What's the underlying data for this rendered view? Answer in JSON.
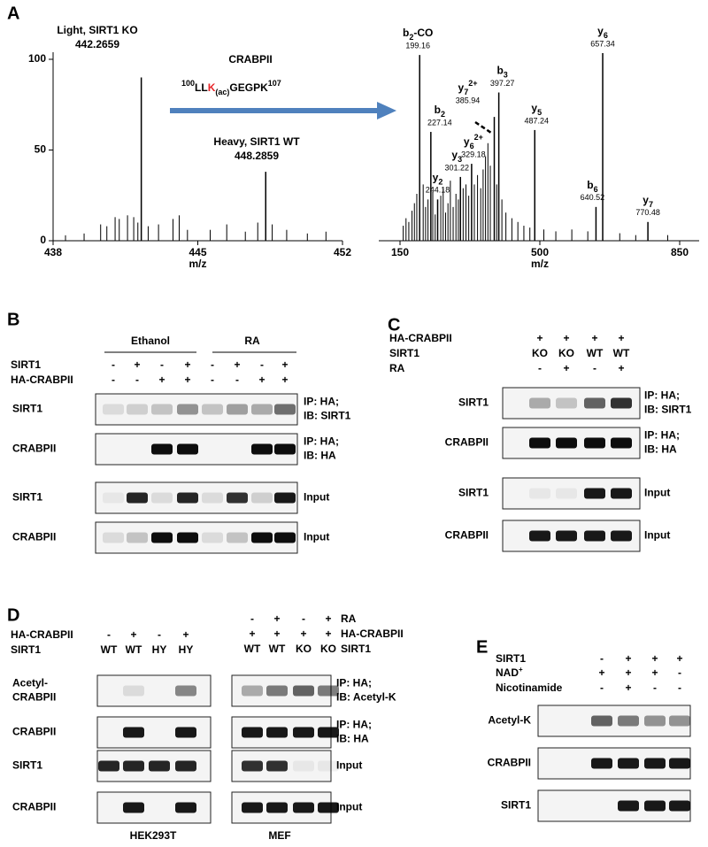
{
  "chart_data": [
    {
      "type": "spectrum",
      "title": "CRABPII",
      "xlabel": "m/z",
      "xlim": [
        438,
        452
      ],
      "xticks": [
        438,
        445,
        452
      ],
      "ylim": [
        0,
        100
      ],
      "yticks": [
        0,
        50,
        100
      ],
      "color": "#000000",
      "sequence": {
        "start": 100,
        "pre": "LL",
        "site": "K",
        "mod": "(ac)",
        "post": "GEGPK",
        "end": 107,
        "site_color": "#e8262a"
      },
      "x": [
        438.6,
        439.5,
        440.3,
        440.6,
        441.0,
        441.2,
        441.6,
        441.9,
        442.1,
        442.6,
        443.1,
        443.8,
        444.1,
        444.5,
        445.6,
        446.4,
        447.3,
        447.9,
        448.6,
        449.3,
        450.3,
        451.2
      ],
      "values": [
        3,
        4,
        9,
        8,
        13,
        12,
        14,
        13,
        10,
        8,
        9,
        12,
        14,
        6,
        6,
        9,
        5,
        10,
        9,
        6,
        4,
        5
      ],
      "labeled_peaks": [
        {
          "x": 442.2659,
          "value": 90,
          "name": "Light, SIRT1 KO",
          "name_color": "#e8262a"
        },
        {
          "x": 448.2859,
          "value": 38,
          "name": "Heavy, SIRT1 WT",
          "name_color": "#e8262a"
        }
      ]
    },
    {
      "type": "spectrum",
      "xlabel": "m/z",
      "xlim": [
        150,
        850
      ],
      "xticks": [
        150,
        500,
        850
      ],
      "ylim": [
        0,
        100
      ],
      "color": "#000000",
      "x": [
        158,
        165,
        172,
        180,
        186,
        192,
        208,
        214,
        220,
        232,
        238,
        252,
        258,
        264,
        270,
        276,
        283,
        290,
        296,
        308,
        315,
        322,
        336,
        344,
        352,
        358,
        364,
        370,
        376,
        392,
        405,
        415,
        430,
        445,
        460,
        475,
        510,
        540,
        580,
        620,
        700,
        740,
        820
      ],
      "values": [
        8,
        12,
        10,
        16,
        20,
        25,
        30,
        18,
        22,
        26,
        14,
        24,
        28,
        15,
        20,
        32,
        18,
        25,
        22,
        28,
        30,
        24,
        30,
        35,
        28,
        38,
        45,
        52,
        40,
        30,
        22,
        15,
        12,
        10,
        8,
        7,
        6,
        5,
        6,
        5,
        4,
        3,
        3
      ],
      "labeled_peaks": [
        {
          "x": 199.16,
          "value": 99,
          "ion": "b",
          "sub": "2",
          "suffix": "-CO"
        },
        {
          "x": 227.14,
          "value": 58,
          "ion": "b",
          "sub": "2"
        },
        {
          "x": 244.18,
          "value": 22,
          "ion": "y",
          "sub": "2"
        },
        {
          "x": 301.22,
          "value": 34,
          "ion": "y",
          "sub": "3"
        },
        {
          "x": 329.18,
          "value": 41,
          "ion": "y",
          "sub": "6",
          "sup": "2+"
        },
        {
          "x": 385.94,
          "value": 66,
          "ion": "y",
          "sub": "7",
          "sup": "2+"
        },
        {
          "x": 397.27,
          "value": 79,
          "ion": "b",
          "sub": "3"
        },
        {
          "x": 487.24,
          "value": 59,
          "ion": "y",
          "sub": "5"
        },
        {
          "x": 657.34,
          "value": 100,
          "ion": "y",
          "sub": "6"
        },
        {
          "x": 640.52,
          "value": 18,
          "ion": "b",
          "sub": "6"
        },
        {
          "x": 770.48,
          "value": 10,
          "ion": "y",
          "sub": "7"
        }
      ]
    }
  ],
  "panel_a": {
    "label": "A"
  },
  "panel_b": {
    "label": "B",
    "groups": [
      "Ethanol",
      "RA"
    ],
    "conditions": [
      {
        "name": "SIRT1",
        "signs": [
          "-",
          "+",
          "-",
          "+",
          "-",
          "+",
          "-",
          "+"
        ]
      },
      {
        "name": "HA-CRABPII",
        "signs": [
          "-",
          "-",
          "+",
          "+",
          "-",
          "-",
          "+",
          "+"
        ]
      }
    ],
    "blots": [
      {
        "protein": [
          "SIRT1"
        ],
        "note": [
          "IP: HA;",
          "IB: SIRT1"
        ]
      },
      {
        "protein": [
          "CRABPII"
        ],
        "note": [
          "IP: HA;",
          "IB: HA"
        ]
      },
      {
        "protein": [
          "SIRT1"
        ],
        "note": [
          "Input"
        ]
      },
      {
        "protein": [
          "CRABPII"
        ],
        "note": [
          "Input"
        ]
      }
    ]
  },
  "panel_c": {
    "label": "C",
    "conditions": [
      {
        "name": "HA-CRABPII",
        "signs": [
          "+",
          "+",
          "+",
          "+"
        ]
      },
      {
        "name": "SIRT1",
        "signs": [
          "KO",
          "KO",
          "WT",
          "WT"
        ]
      },
      {
        "name": "RA",
        "signs": [
          "-",
          "+",
          "-",
          "+"
        ]
      }
    ],
    "blots": [
      {
        "protein": [
          "SIRT1"
        ],
        "note": [
          "IP: HA;",
          "IB: SIRT1"
        ]
      },
      {
        "protein": [
          "CRABPII"
        ],
        "note": [
          "IP: HA;",
          "IB: HA"
        ]
      },
      {
        "protein": [
          "SIRT1"
        ],
        "note": [
          "Input"
        ]
      },
      {
        "protein": [
          "CRABPII"
        ],
        "note": [
          "Input"
        ]
      }
    ]
  },
  "panel_d": {
    "label": "D",
    "left": {
      "cell": "HEK293T",
      "conditions": [
        {
          "name": "HA-CRABPII",
          "signs": [
            "-",
            "+",
            "-",
            "+"
          ]
        },
        {
          "name": "SIRT1",
          "signs": [
            "WT",
            "WT",
            "HY",
            "HY"
          ]
        }
      ],
      "blots": [
        {
          "protein": [
            "Acetyl-",
            "CRABPII"
          ]
        },
        {
          "protein": [
            "CRABPII"
          ]
        },
        {
          "protein": [
            "SIRT1"
          ]
        },
        {
          "protein": [
            "CRABPII"
          ]
        }
      ]
    },
    "right": {
      "cell": "MEF",
      "conditions": [
        {
          "name": "RA",
          "signs": [
            "-",
            "+",
            "-",
            "+"
          ]
        },
        {
          "name": "HA-CRABPII",
          "signs": [
            "+",
            "+",
            "+",
            "+"
          ]
        },
        {
          "name": "SIRT1",
          "signs": [
            "WT",
            "WT",
            "KO",
            "KO"
          ]
        }
      ],
      "blots": [
        {
          "note": [
            "IP: HA;",
            "IB: Acetyl-K"
          ]
        },
        {
          "note": [
            "IP: HA;",
            "IB: HA"
          ]
        },
        {
          "note": [
            "Input"
          ]
        },
        {
          "note": [
            "Input"
          ]
        }
      ]
    }
  },
  "panel_e": {
    "label": "E",
    "conditions": [
      {
        "name": "SIRT1",
        "signs": [
          "-",
          "+",
          "+",
          "+"
        ]
      },
      {
        "name": "NAD",
        "sup": "+",
        "signs": [
          "+",
          "+",
          "+",
          "-"
        ]
      },
      {
        "name": "Nicotinamide",
        "signs": [
          "-",
          "+",
          "-",
          "-"
        ]
      }
    ],
    "blots": [
      {
        "protein": [
          "Acetyl-K"
        ]
      },
      {
        "protein": [
          "CRABPII"
        ]
      },
      {
        "protein": [
          "SIRT1"
        ]
      }
    ]
  }
}
